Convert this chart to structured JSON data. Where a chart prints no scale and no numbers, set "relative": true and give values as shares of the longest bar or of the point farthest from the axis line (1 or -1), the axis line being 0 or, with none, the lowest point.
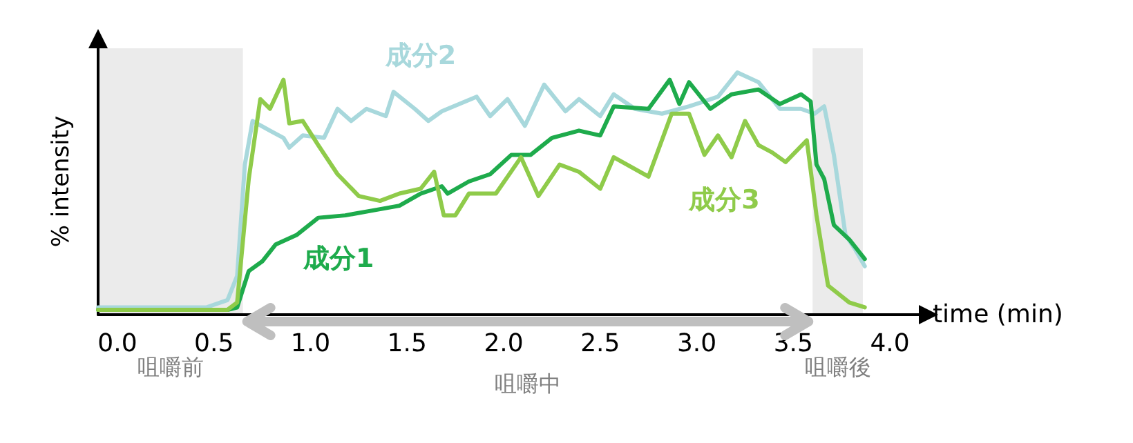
{
  "chart_data": {
    "type": "line",
    "relative": true,
    "xlabel": "time (min)",
    "ylabel": "% intensity",
    "xlim": [
      -0.1,
      4.15
    ],
    "xticks": [
      {
        "value": 0,
        "label": "0.0"
      },
      {
        "value": 0.5,
        "label": "0.5"
      },
      {
        "value": 1,
        "label": "1.0"
      },
      {
        "value": 1.5,
        "label": "1.5"
      },
      {
        "value": 2,
        "label": "2.0"
      },
      {
        "value": 2.5,
        "label": "2.5"
      },
      {
        "value": 3,
        "label": "3.0"
      },
      {
        "value": 3.5,
        "label": "3.5"
      },
      {
        "value": 4,
        "label": "4.0"
      }
    ],
    "grid": false,
    "legend": false,
    "marker": "none",
    "line_style": "solid",
    "bands": [
      {
        "axis": "x",
        "from": -0.1,
        "to": 0.65,
        "label": "咀嚼前",
        "color": "#ebebeb"
      },
      {
        "axis": "x",
        "from": 3.6,
        "to": 3.86,
        "label": "咀嚼後",
        "color": "#ebebeb"
      }
    ],
    "annotations": [
      "咀嚼中"
    ],
    "series": [
      {
        "name": "成分2",
        "color": "#a8d8dc",
        "x": [
          -0.1,
          0.46,
          0.57,
          0.62,
          0.66,
          0.7,
          0.79,
          0.86,
          0.89,
          0.96,
          1.07,
          1.14,
          1.21,
          1.29,
          1.39,
          1.43,
          1.54,
          1.61,
          1.68,
          1.86,
          1.93,
          2.02,
          2.11,
          2.21,
          2.32,
          2.39,
          2.5,
          2.57,
          2.68,
          2.82,
          2.96,
          3.11,
          3.21,
          3.32,
          3.43,
          3.54,
          3.61,
          3.66,
          3.71,
          3.77,
          3.82,
          3.87
        ],
        "values": [
          0.03,
          0.03,
          0.06,
          0.16,
          0.62,
          0.8,
          0.76,
          0.73,
          0.69,
          0.74,
          0.73,
          0.85,
          0.8,
          0.85,
          0.82,
          0.92,
          0.85,
          0.8,
          0.84,
          0.9,
          0.82,
          0.89,
          0.78,
          0.95,
          0.84,
          0.89,
          0.82,
          0.91,
          0.85,
          0.83,
          0.86,
          0.9,
          1.0,
          0.96,
          0.85,
          0.85,
          0.83,
          0.86,
          0.66,
          0.33,
          0.27,
          0.2
        ]
      },
      {
        "name": "成分1",
        "color": "#1eab4c",
        "x": [
          -0.1,
          0.57,
          0.62,
          0.68,
          0.75,
          0.82,
          0.93,
          1.04,
          1.18,
          1.32,
          1.46,
          1.57,
          1.68,
          1.71,
          1.82,
          1.93,
          2.04,
          2.14,
          2.25,
          2.39,
          2.5,
          2.57,
          2.75,
          2.86,
          2.91,
          2.96,
          3.07,
          3.18,
          3.32,
          3.43,
          3.54,
          3.59,
          3.62,
          3.66,
          3.71,
          3.79,
          3.87
        ],
        "values": [
          0.02,
          0.02,
          0.03,
          0.18,
          0.22,
          0.29,
          0.33,
          0.4,
          0.41,
          0.43,
          0.45,
          0.5,
          0.53,
          0.5,
          0.55,
          0.58,
          0.66,
          0.66,
          0.73,
          0.76,
          0.74,
          0.86,
          0.85,
          0.97,
          0.87,
          0.96,
          0.85,
          0.91,
          0.93,
          0.87,
          0.91,
          0.88,
          0.62,
          0.56,
          0.37,
          0.31,
          0.23
        ]
      },
      {
        "name": "成分3",
        "color": "#8fcb4a",
        "x": [
          -0.1,
          0.46,
          0.57,
          0.62,
          0.68,
          0.74,
          0.79,
          0.86,
          0.89,
          0.96,
          1.04,
          1.14,
          1.25,
          1.36,
          1.46,
          1.57,
          1.64,
          1.69,
          1.75,
          1.82,
          1.96,
          2.09,
          2.18,
          2.29,
          2.39,
          2.5,
          2.57,
          2.75,
          2.87,
          2.96,
          3.04,
          3.11,
          3.18,
          3.25,
          3.32,
          3.39,
          3.46,
          3.57,
          3.62,
          3.68,
          3.79,
          3.87
        ],
        "values": [
          0.02,
          0.02,
          0.02,
          0.05,
          0.56,
          0.89,
          0.85,
          0.97,
          0.79,
          0.8,
          0.7,
          0.58,
          0.49,
          0.47,
          0.5,
          0.52,
          0.59,
          0.41,
          0.41,
          0.5,
          0.5,
          0.65,
          0.49,
          0.62,
          0.59,
          0.52,
          0.65,
          0.57,
          0.83,
          0.83,
          0.66,
          0.74,
          0.65,
          0.8,
          0.7,
          0.67,
          0.63,
          0.72,
          0.41,
          0.12,
          0.05,
          0.03
        ]
      }
    ]
  }
}
